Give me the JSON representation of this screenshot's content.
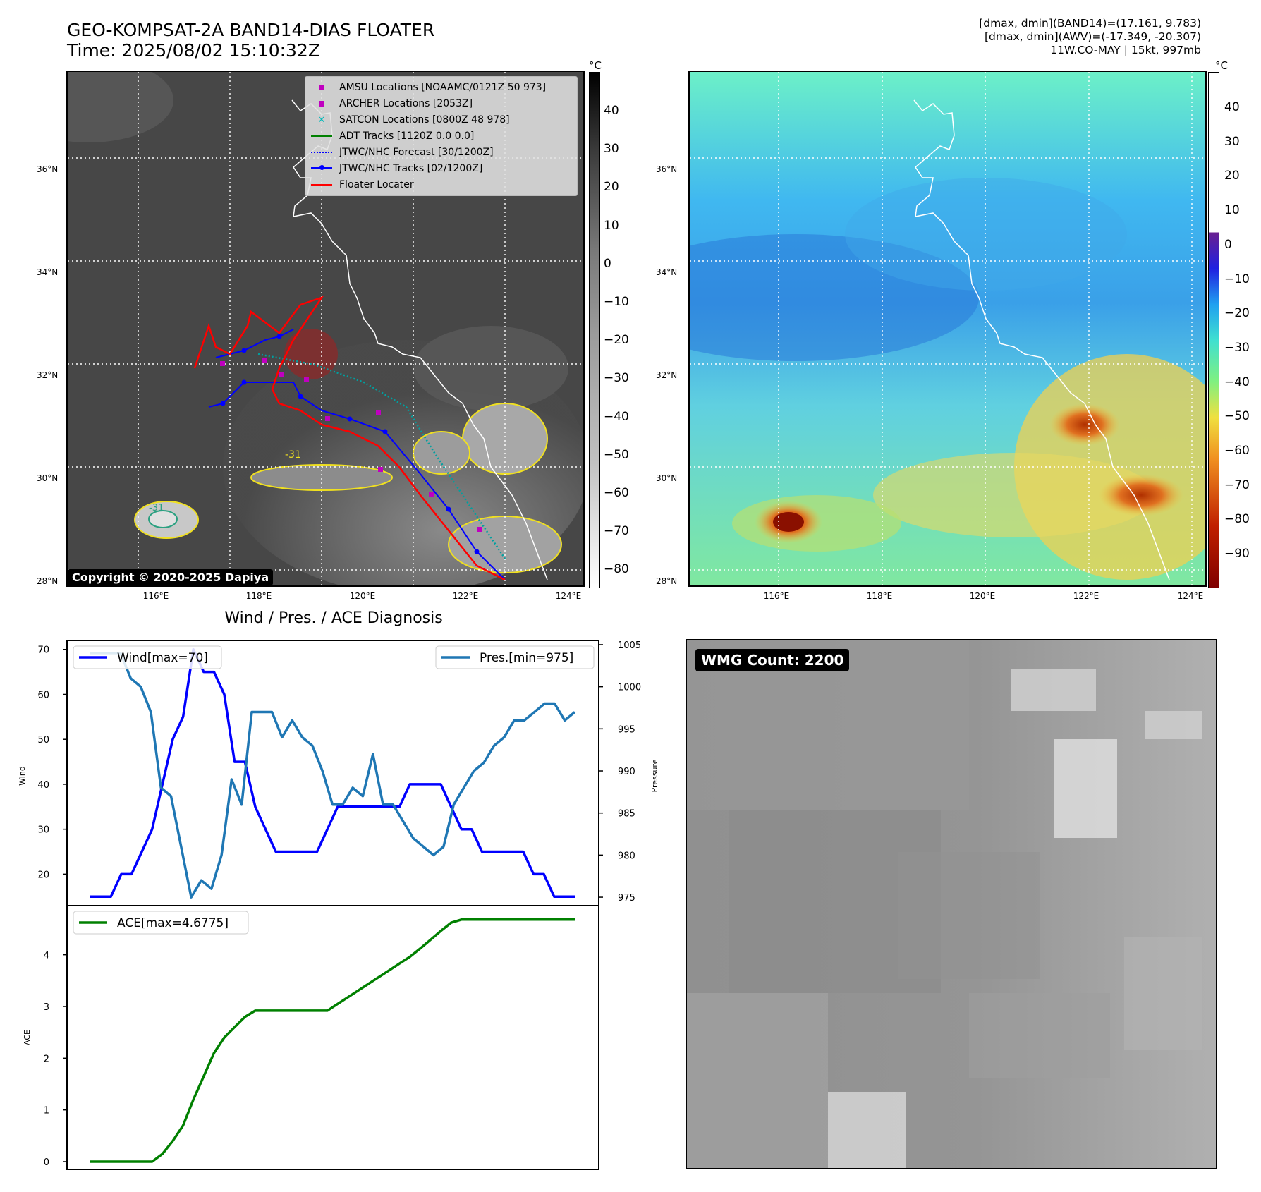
{
  "header": {
    "title_line1": "GEO-KOMPSAT-2A BAND14-DIAS FLOATER",
    "title_line2": "Time: 2025/08/02 15:10:32Z",
    "right_line1": "[dmax, dmin](BAND14)=(17.161, 9.783)",
    "right_line2": "[dmax, dmin](AWV)=(-17.349, -20.307)",
    "right_line3": "11W.CO-MAY | 15kt, 997mb"
  },
  "map": {
    "lat_labels": [
      "36°N",
      "34°N",
      "32°N",
      "30°N",
      "28°N"
    ],
    "lon_labels": [
      "116°E",
      "118°E",
      "120°E",
      "122°E",
      "124°E"
    ],
    "copyright": "Copyright © 2020-2025 Dapiya",
    "contour_label": "-31",
    "legend": [
      {
        "label": "AMSU Locations [NOAAMC/0121Z 50 973]",
        "color": "#c000c0",
        "marker": "square"
      },
      {
        "label": "ARCHER Locations [2053Z]",
        "color": "#c000c0",
        "marker": "square"
      },
      {
        "label": "SATCON Locations [0800Z 48 978]",
        "color": "#00b8b8",
        "marker": "x"
      },
      {
        "label": "ADT Tracks [1120Z 0.0 0.0]",
        "color": "#008000",
        "marker": "line"
      },
      {
        "label": "JTWC/NHC Forecast [30/1200Z]",
        "color": "#0000ff",
        "marker": "dotted"
      },
      {
        "label": "JTWC/NHC Tracks [02/1200Z]",
        "color": "#0000ff",
        "marker": "dotline"
      },
      {
        "label": "Floater Locater",
        "color": "#ff0000",
        "marker": "line"
      }
    ]
  },
  "colorbar_left": {
    "unit": "°C",
    "ticks": [
      "40",
      "30",
      "20",
      "10",
      "0",
      "−10",
      "−20",
      "−30",
      "−40",
      "−50",
      "−60",
      "−70",
      "−80"
    ]
  },
  "colorbar_right": {
    "unit": "°C",
    "ticks": [
      "40",
      "30",
      "20",
      "10",
      "0",
      "−10",
      "−20",
      "−30",
      "−40",
      "−50",
      "−60",
      "−70",
      "−80",
      "−90"
    ]
  },
  "diagnosis": {
    "title": "Wind / Pres. / ACE Diagnosis",
    "wind_ylabel": "Wind",
    "pres_ylabel": "Pressure",
    "ace_ylabel": "ACE",
    "wind_legend": "Wind[max=70]",
    "pres_legend": "Pres.[min=975]",
    "ace_legend": "ACE[max=4.6775]",
    "wind_color": "#0000ff",
    "pres_color": "#1f77b4",
    "ace_color": "#008000"
  },
  "wmg": {
    "label": "WMG Count: 2200"
  },
  "chart_data": [
    {
      "type": "line",
      "title": "Wind / Pres. / ACE Diagnosis",
      "ylabel": "Wind",
      "ylim": [
        13,
        72
      ],
      "yticks": [
        20,
        30,
        40,
        50,
        60,
        70
      ],
      "series": [
        {
          "name": "Wind[max=70]",
          "values": [
            15,
            15,
            15,
            20,
            20,
            25,
            30,
            40,
            50,
            55,
            70,
            65,
            65,
            60,
            45,
            45,
            35,
            30,
            25,
            25,
            25,
            25,
            25,
            30,
            35,
            35,
            35,
            35,
            35,
            35,
            35,
            40,
            40,
            40,
            40,
            35,
            30,
            30,
            25,
            25,
            25,
            25,
            25,
            20,
            20,
            15,
            15,
            15
          ]
        }
      ]
    },
    {
      "type": "line",
      "ylabel": "Pressure",
      "ylim": [
        974,
        1005.5
      ],
      "yticks": [
        975,
        980,
        985,
        990,
        995,
        1000,
        1005
      ],
      "series": [
        {
          "name": "Pres.[min=975]",
          "values": [
            1004,
            1004,
            1004,
            1004,
            1001,
            1000,
            997,
            988,
            987,
            981,
            975,
            977,
            976,
            980,
            989,
            986,
            997,
            997,
            997,
            994,
            996,
            994,
            993,
            990,
            986,
            986,
            988,
            987,
            992,
            986,
            986,
            984,
            982,
            981,
            980,
            981,
            986,
            988,
            990,
            991,
            993,
            994,
            996,
            996,
            997,
            998,
            998,
            996,
            997
          ]
        }
      ]
    },
    {
      "type": "line",
      "ylabel": "ACE",
      "ylim": [
        -0.15,
        4.95
      ],
      "yticks": [
        0,
        1,
        2,
        3,
        4
      ],
      "series": [
        {
          "name": "ACE[max=4.6775]",
          "values": [
            0,
            0,
            0,
            0,
            0,
            0,
            0,
            0.15,
            0.4,
            0.7,
            1.2,
            1.65,
            2.1,
            2.4,
            2.6,
            2.8,
            2.92,
            2.92,
            2.92,
            2.92,
            2.92,
            2.92,
            2.92,
            2.92,
            3.05,
            3.18,
            3.31,
            3.44,
            3.57,
            3.7,
            3.83,
            3.96,
            4.12,
            4.29,
            4.46,
            4.62,
            4.68,
            4.68,
            4.68,
            4.68,
            4.68,
            4.68,
            4.68,
            4.68,
            4.68,
            4.68,
            4.68,
            4.68
          ]
        }
      ]
    }
  ]
}
